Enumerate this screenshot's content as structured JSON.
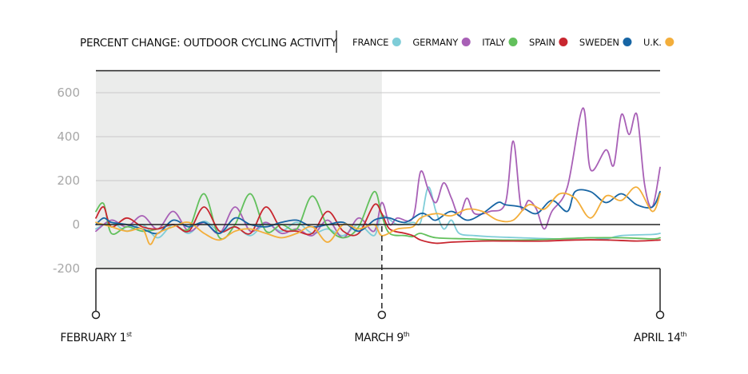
{
  "chart_data": {
    "type": "line",
    "title": "PERCENT CHANGE: OUTDOOR CYCLING ACTIVITY",
    "ylim": [
      -200,
      700
    ],
    "y_ticks": [
      "600",
      "400",
      "200",
      "0",
      "-200"
    ],
    "y_tick_values": [
      600,
      400,
      200,
      0,
      -200
    ],
    "grid": true,
    "legend_position": "top",
    "shaded_region": {
      "from_day": 0,
      "to_day": 37
    },
    "date_markers": [
      {
        "label": "FEBRUARY 1",
        "sup": "st",
        "day": 0,
        "dashed": false
      },
      {
        "label": "MARCH 9",
        "sup": "th",
        "day": 37,
        "dashed": true
      },
      {
        "label": "APRIL 14",
        "sup": "th",
        "day": 73,
        "dashed": false
      }
    ],
    "x_start": "February 1",
    "x_end": "April 14",
    "series": [
      {
        "name": "FRANCE",
        "color": "#7fcdd8",
        "points": [
          [
            0,
            -20
          ],
          [
            2,
            10
          ],
          [
            4,
            -30
          ],
          [
            6,
            0
          ],
          [
            8,
            -60
          ],
          [
            10,
            0
          ],
          [
            12,
            -40
          ],
          [
            14,
            15
          ],
          [
            16,
            -30
          ],
          [
            18,
            -10
          ],
          [
            20,
            -50
          ],
          [
            22,
            5
          ],
          [
            24,
            -30
          ],
          [
            26,
            10
          ],
          [
            28,
            -40
          ],
          [
            30,
            -20
          ],
          [
            32,
            -50
          ],
          [
            34,
            0
          ],
          [
            36,
            -50
          ],
          [
            37,
            40
          ],
          [
            39,
            0
          ],
          [
            41,
            10
          ],
          [
            42,
            10
          ],
          [
            43,
            170
          ],
          [
            44,
            60
          ],
          [
            45,
            -20
          ],
          [
            46,
            20
          ],
          [
            47,
            -40
          ],
          [
            49,
            -50
          ],
          [
            51,
            -55
          ],
          [
            55,
            -60
          ],
          [
            60,
            -65
          ],
          [
            64,
            -60
          ],
          [
            66,
            -65
          ],
          [
            68,
            -50
          ],
          [
            72,
            -45
          ],
          [
            73,
            -40
          ]
        ]
      },
      {
        "name": "GERMANY",
        "color": "#a860b6",
        "points": [
          [
            0,
            -30
          ],
          [
            2,
            20
          ],
          [
            4,
            -10
          ],
          [
            6,
            40
          ],
          [
            8,
            -20
          ],
          [
            10,
            60
          ],
          [
            12,
            -30
          ],
          [
            14,
            10
          ],
          [
            16,
            -40
          ],
          [
            18,
            80
          ],
          [
            20,
            -30
          ],
          [
            22,
            10
          ],
          [
            24,
            -40
          ],
          [
            26,
            -20
          ],
          [
            28,
            -50
          ],
          [
            30,
            20
          ],
          [
            32,
            -60
          ],
          [
            34,
            30
          ],
          [
            36,
            -30
          ],
          [
            37,
            100
          ],
          [
            38,
            0
          ],
          [
            39,
            30
          ],
          [
            41,
            30
          ],
          [
            42,
            240
          ],
          [
            43,
            160
          ],
          [
            44,
            100
          ],
          [
            45,
            190
          ],
          [
            46,
            120
          ],
          [
            47,
            40
          ],
          [
            48,
            120
          ],
          [
            49,
            50
          ],
          [
            51,
            60
          ],
          [
            53,
            100
          ],
          [
            54,
            380
          ],
          [
            55,
            80
          ],
          [
            56,
            110
          ],
          [
            57,
            70
          ],
          [
            58,
            -20
          ],
          [
            59,
            60
          ],
          [
            61,
            170
          ],
          [
            63,
            530
          ],
          [
            64,
            250
          ],
          [
            66,
            340
          ],
          [
            67,
            270
          ],
          [
            68,
            500
          ],
          [
            69,
            410
          ],
          [
            70,
            500
          ],
          [
            71,
            180
          ],
          [
            72,
            80
          ],
          [
            73,
            260
          ]
        ]
      },
      {
        "name": "ITALY",
        "color": "#62c05c",
        "points": [
          [
            0,
            60
          ],
          [
            1,
            95
          ],
          [
            2,
            -40
          ],
          [
            4,
            -10
          ],
          [
            6,
            -30
          ],
          [
            8,
            -20
          ],
          [
            10,
            0
          ],
          [
            12,
            -20
          ],
          [
            14,
            140
          ],
          [
            16,
            -60
          ],
          [
            18,
            0
          ],
          [
            20,
            140
          ],
          [
            22,
            -30
          ],
          [
            24,
            0
          ],
          [
            26,
            -20
          ],
          [
            28,
            130
          ],
          [
            30,
            -10
          ],
          [
            32,
            -60
          ],
          [
            34,
            -10
          ],
          [
            36,
            150
          ],
          [
            37,
            40
          ],
          [
            38,
            -40
          ],
          [
            40,
            -50
          ],
          [
            41,
            -55
          ],
          [
            42,
            -40
          ],
          [
            44,
            -60
          ],
          [
            48,
            -65
          ],
          [
            52,
            -70
          ],
          [
            56,
            -70
          ],
          [
            60,
            -65
          ],
          [
            64,
            -60
          ],
          [
            68,
            -60
          ],
          [
            72,
            -65
          ],
          [
            73,
            -60
          ]
        ]
      },
      {
        "name": "SPAIN",
        "color": "#c8262f",
        "points": [
          [
            0,
            30
          ],
          [
            1,
            80
          ],
          [
            2,
            -10
          ],
          [
            4,
            30
          ],
          [
            6,
            -10
          ],
          [
            8,
            -20
          ],
          [
            10,
            0
          ],
          [
            12,
            -30
          ],
          [
            14,
            80
          ],
          [
            16,
            -30
          ],
          [
            18,
            -10
          ],
          [
            20,
            -40
          ],
          [
            22,
            80
          ],
          [
            24,
            -20
          ],
          [
            26,
            -30
          ],
          [
            28,
            -40
          ],
          [
            30,
            60
          ],
          [
            32,
            -30
          ],
          [
            34,
            -40
          ],
          [
            36,
            90
          ],
          [
            37,
            50
          ],
          [
            38,
            -20
          ],
          [
            40,
            -40
          ],
          [
            41,
            -50
          ],
          [
            42,
            -70
          ],
          [
            44,
            -85
          ],
          [
            46,
            -80
          ],
          [
            50,
            -75
          ],
          [
            54,
            -75
          ],
          [
            58,
            -75
          ],
          [
            62,
            -70
          ],
          [
            66,
            -70
          ],
          [
            70,
            -75
          ],
          [
            73,
            -70
          ]
        ]
      },
      {
        "name": "SWEDEN",
        "color": "#1765a4",
        "points": [
          [
            0,
            0
          ],
          [
            1,
            30
          ],
          [
            2,
            10
          ],
          [
            4,
            0
          ],
          [
            6,
            -20
          ],
          [
            8,
            -40
          ],
          [
            10,
            20
          ],
          [
            12,
            -10
          ],
          [
            14,
            10
          ],
          [
            16,
            -40
          ],
          [
            18,
            30
          ],
          [
            20,
            0
          ],
          [
            22,
            -10
          ],
          [
            24,
            10
          ],
          [
            26,
            20
          ],
          [
            28,
            -10
          ],
          [
            30,
            0
          ],
          [
            32,
            10
          ],
          [
            34,
            -30
          ],
          [
            36,
            20
          ],
          [
            37,
            30
          ],
          [
            38,
            30
          ],
          [
            40,
            10
          ],
          [
            42,
            50
          ],
          [
            43,
            40
          ],
          [
            44,
            20
          ],
          [
            46,
            60
          ],
          [
            48,
            20
          ],
          [
            50,
            50
          ],
          [
            52,
            100
          ],
          [
            53,
            90
          ],
          [
            55,
            80
          ],
          [
            57,
            50
          ],
          [
            59,
            110
          ],
          [
            61,
            60
          ],
          [
            62,
            150
          ],
          [
            64,
            150
          ],
          [
            66,
            100
          ],
          [
            68,
            140
          ],
          [
            70,
            90
          ],
          [
            72,
            80
          ],
          [
            73,
            150
          ]
        ]
      },
      {
        "name": "U.K.",
        "color": "#f3ae3b",
        "points": [
          [
            0,
            10
          ],
          [
            2,
            -10
          ],
          [
            4,
            -30
          ],
          [
            6,
            -20
          ],
          [
            7,
            -90
          ],
          [
            8,
            -40
          ],
          [
            10,
            -10
          ],
          [
            12,
            10
          ],
          [
            14,
            -40
          ],
          [
            16,
            -70
          ],
          [
            18,
            -30
          ],
          [
            20,
            -20
          ],
          [
            22,
            -40
          ],
          [
            24,
            -60
          ],
          [
            26,
            -40
          ],
          [
            28,
            -10
          ],
          [
            30,
            -80
          ],
          [
            32,
            0
          ],
          [
            34,
            -20
          ],
          [
            36,
            0
          ],
          [
            37,
            -50
          ],
          [
            39,
            -20
          ],
          [
            41,
            -10
          ],
          [
            42,
            30
          ],
          [
            44,
            50
          ],
          [
            46,
            40
          ],
          [
            48,
            70
          ],
          [
            50,
            60
          ],
          [
            52,
            20
          ],
          [
            54,
            20
          ],
          [
            56,
            90
          ],
          [
            58,
            70
          ],
          [
            60,
            140
          ],
          [
            62,
            120
          ],
          [
            64,
            30
          ],
          [
            66,
            130
          ],
          [
            68,
            110
          ],
          [
            70,
            170
          ],
          [
            72,
            60
          ],
          [
            73,
            140
          ]
        ]
      }
    ]
  }
}
